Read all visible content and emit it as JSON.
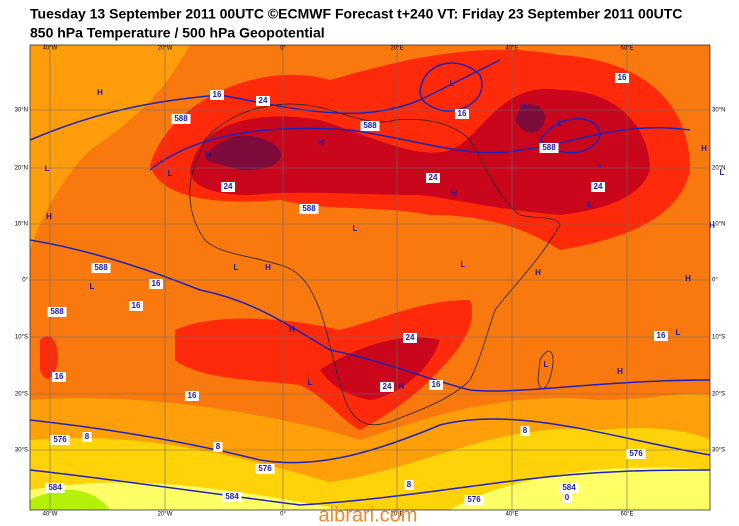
{
  "header": {
    "title": "Tuesday 13 September 2011 00UTC ©ECMWF Forecast t+240 VT: Friday 23 September 2011 00UTC",
    "subtitle": "850 hPa Temperature / 500 hPa Geopotential"
  },
  "lon_labels": [
    "40°W",
    "20°W",
    "0°",
    "20°E",
    "40°E",
    "60°E"
  ],
  "lat_labels": [
    "30°N",
    "20°N",
    "10°N",
    "0°",
    "10°S",
    "20°S",
    "30°S"
  ],
  "contour_labels": [
    "16",
    "24",
    "16",
    "16",
    "588",
    "588",
    "588",
    "24",
    "24",
    "24",
    "588",
    "588",
    "16",
    "16",
    "588",
    "16",
    "16",
    "24",
    "24",
    "16",
    "16",
    "8",
    "576",
    "8",
    "576",
    "8",
    "576",
    "8",
    "584",
    "584",
    "576",
    "0",
    "584"
  ],
  "pressure_centres": [
    "H",
    "L",
    "H",
    "L",
    "H",
    "L",
    "H",
    "L",
    "L",
    "H",
    "L",
    "H",
    "L",
    "H",
    "L",
    "H",
    "L",
    "H",
    "L",
    "H",
    "H",
    "L",
    "H",
    "L",
    "H",
    "L",
    "H",
    "L"
  ],
  "watermark": "albrari.com"
}
